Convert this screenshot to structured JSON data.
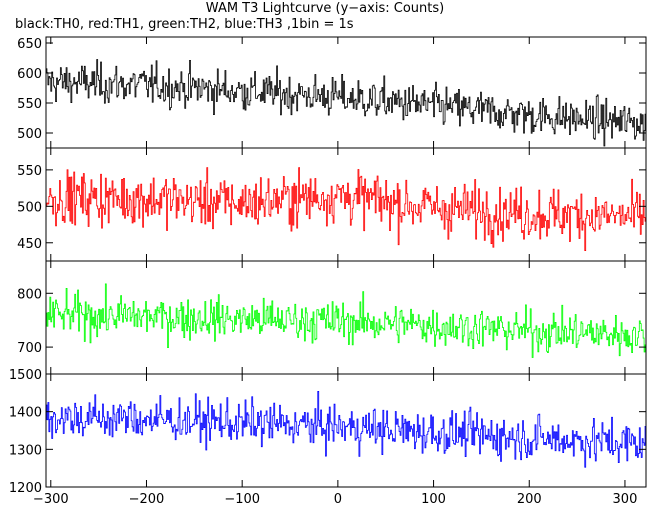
{
  "title": "WAM T3 Lightcurve (y−axis: Counts)",
  "subtitle": "black:TH0, red:TH1, green:TH2, blue:TH3 ,1bin = 1s",
  "chart_data": {
    "type": "line",
    "x_range": [
      -305,
      322
    ],
    "x_ticks": [
      -300,
      -200,
      -100,
      0,
      100,
      200,
      300
    ],
    "x_tick_labels": [
      "−300",
      "−200",
      "−100",
      "0",
      "100",
      "200",
      "300"
    ],
    "bin_width_s": 1,
    "grid": false,
    "series": [
      {
        "name": "TH0",
        "color": "#000000",
        "ylim": [
          475,
          660
        ],
        "y_ticks": [
          500,
          550,
          600,
          650
        ],
        "y_tick_labels": [
          "500",
          "550",
          "600",
          "650"
        ],
        "trend": [
          [
            -305,
            585
          ],
          [
            -200,
            580
          ],
          [
            -100,
            570
          ],
          [
            0,
            560
          ],
          [
            100,
            545
          ],
          [
            200,
            530
          ],
          [
            322,
            515
          ]
        ],
        "noise_sd": 22
      },
      {
        "name": "TH1",
        "color": "#ff0000",
        "ylim": [
          425,
          580
        ],
        "y_ticks": [
          450,
          500,
          550
        ],
        "y_tick_labels": [
          "450",
          "500",
          "550"
        ],
        "trend": [
          [
            -305,
            512
          ],
          [
            -200,
            510
          ],
          [
            -100,
            505
          ],
          [
            0,
            515
          ],
          [
            100,
            498
          ],
          [
            200,
            490
          ],
          [
            322,
            485
          ]
        ],
        "noise_sd": 24
      },
      {
        "name": "TH2",
        "color": "#00ff00",
        "ylim": [
          650,
          860
        ],
        "y_ticks": [
          700,
          800
        ],
        "y_tick_labels": [
          "700",
          "800"
        ],
        "trend": [
          [
            -305,
            760
          ],
          [
            -200,
            757
          ],
          [
            -100,
            752
          ],
          [
            0,
            748
          ],
          [
            100,
            740
          ],
          [
            200,
            730
          ],
          [
            322,
            722
          ]
        ],
        "noise_sd": 25
      },
      {
        "name": "TH3",
        "color": "#0000ff",
        "ylim": [
          1200,
          1500
        ],
        "y_ticks": [
          1200,
          1300,
          1400,
          1500
        ],
        "y_tick_labels": [
          "1200",
          "1300",
          "1400",
          "1500"
        ],
        "trend": [
          [
            -305,
            1385
          ],
          [
            -200,
            1380
          ],
          [
            -100,
            1370
          ],
          [
            0,
            1360
          ],
          [
            100,
            1345
          ],
          [
            200,
            1330
          ],
          [
            322,
            1315
          ]
        ],
        "noise_sd": 38
      }
    ]
  }
}
